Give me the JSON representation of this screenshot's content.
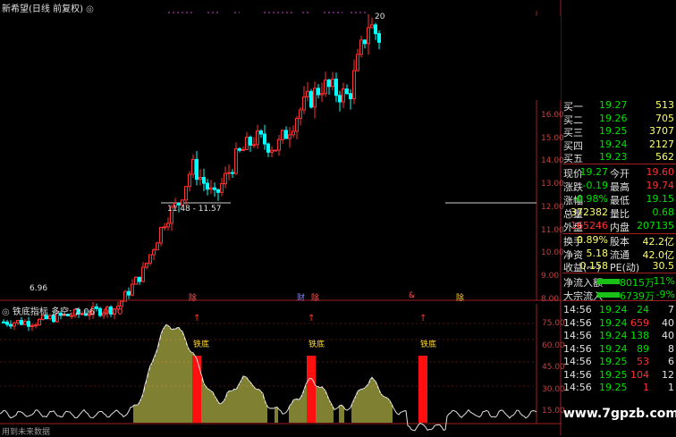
{
  "header": {
    "title": "新希望(日线 前复权)",
    "circle_icon": "circle-icon"
  },
  "indicator": {
    "name": "铁底指标",
    "label_mid": "多空:",
    "value1": "2.06",
    "value2": "0.00",
    "signal_label": "铁底"
  },
  "bottom_note": "用到未来数据",
  "watermark": "www.7gpzb.com",
  "main_chart": {
    "price_ticks": [
      "16.00",
      "15.00",
      "14.00",
      "13.00",
      "12.00",
      "11.00",
      "10.00",
      "9.00",
      "8.00"
    ],
    "range_label": "11.48 - 11.57",
    "low_label": "6.96",
    "high_label": "20",
    "event_markers": [
      {
        "text": "除",
        "color": "#ff5555"
      },
      {
        "text": "财",
        "color": "#8080ff"
      },
      {
        "text": "除",
        "color": "#ff5555"
      },
      {
        "text": "&",
        "color": "#ff5555"
      },
      {
        "text": "除",
        "color": "#ffcc33"
      }
    ]
  },
  "indicator_ticks": [
    "75.00",
    "60.00",
    "45.00",
    "30.00",
    "15.00"
  ],
  "order_book": {
    "buy": [
      {
        "label": "买一",
        "price": "19.27",
        "vol": "513"
      },
      {
        "label": "买二",
        "price": "19.26",
        "vol": "705"
      },
      {
        "label": "买三",
        "price": "19.25",
        "vol": "3707"
      },
      {
        "label": "买四",
        "price": "19.24",
        "vol": "2127"
      },
      {
        "label": "买五",
        "price": "19.23",
        "vol": "562"
      }
    ]
  },
  "quote": {
    "rows": [
      {
        "l1": "现价",
        "v1": "19.27",
        "l2": "今开",
        "v2": "19.60"
      },
      {
        "l1": "涨跌",
        "v1": "-0.19",
        "l2": "最高",
        "v2": "19.74"
      },
      {
        "l1": "涨幅",
        "v1": "-0.98%",
        "l2": "最低",
        "v2": "19.15"
      },
      {
        "l1": "总量",
        "v1": "372382",
        "l2": "量比",
        "v2": "0.68"
      },
      {
        "l1": "外盘",
        "v1": "165246",
        "l2": "内盘",
        "v2": "207135"
      }
    ],
    "rows2": [
      {
        "l1": "换手",
        "v1": "0.89%",
        "l2": "股本",
        "v2": "42.2亿"
      },
      {
        "l1": "净资",
        "v1": "5.18",
        "l2": "流通",
        "v2": "42.0亿"
      },
      {
        "l1": "收益(一)",
        "v1": "0.158",
        "l2": "PE(动)",
        "v2": "30.5"
      }
    ]
  },
  "flows": [
    {
      "label": "净流入额",
      "value": "-8015万",
      "pct": "-11%"
    },
    {
      "label": "大宗流入",
      "value": "-6739万",
      "pct": "-9%"
    }
  ],
  "ticks": [
    {
      "time": "14:56",
      "price": "19.24",
      "vol": "24",
      "n": "7"
    },
    {
      "time": "14:56",
      "price": "19.24",
      "vol": "659",
      "n": "40"
    },
    {
      "time": "14:56",
      "price": "19.24",
      "vol": "138",
      "n": "40"
    },
    {
      "time": "14:56",
      "price": "19.24",
      "vol": "89",
      "n": "8"
    },
    {
      "time": "14:56",
      "price": "19.25",
      "vol": "53",
      "n": "6"
    },
    {
      "time": "14:56",
      "price": "19.25",
      "vol": "104",
      "n": "12"
    },
    {
      "time": "14:56",
      "price": "19.25",
      "vol": "1",
      "n": "1"
    }
  ],
  "colors": {
    "up": "#ff3030",
    "down": "#00ffff",
    "price_green": "#00e000",
    "yellow": "#ffff66",
    "label": "#e0e0e0"
  }
}
